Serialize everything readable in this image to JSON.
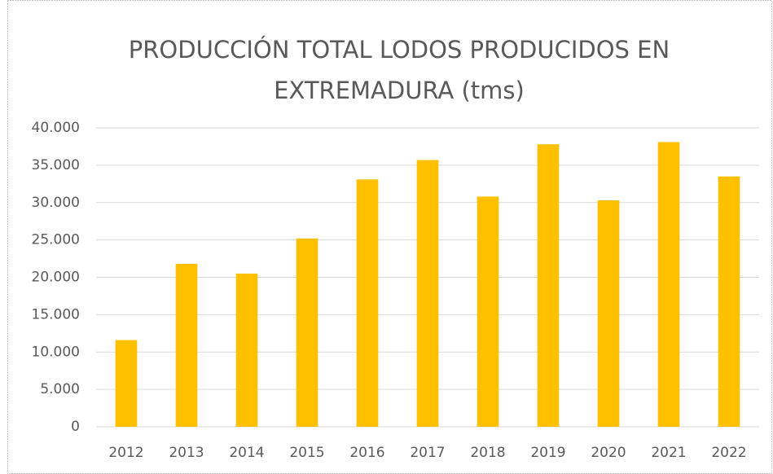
{
  "chart_data": {
    "type": "bar",
    "title": "PRODUCCIÓN TOTAL LODOS PRODUCIDOS EN EXTREMADURA (tms)",
    "categories": [
      "2012",
      "2013",
      "2014",
      "2015",
      "2016",
      "2017",
      "2018",
      "2019",
      "2020",
      "2021",
      "2022"
    ],
    "values": [
      11600,
      21800,
      20500,
      25200,
      33100,
      35700,
      30800,
      37800,
      30300,
      38100,
      33500
    ],
    "color": "#ffc000",
    "ylim": [
      0,
      40000
    ],
    "yticks": [
      0,
      {
        "value": 5000,
        "label": "5.000"
      },
      {
        "value": 10000,
        "label": "10.000"
      },
      {
        "value": 15000,
        "label": "15.000"
      },
      {
        "value": 20000,
        "label": "20.000"
      },
      {
        "value": 25000,
        "label": "25.000"
      },
      {
        "value": 30000,
        "label": "30.000"
      },
      {
        "value": 35000,
        "label": "35.000"
      },
      {
        "value": 40000,
        "label": "40.000"
      }
    ],
    "grid": true
  }
}
